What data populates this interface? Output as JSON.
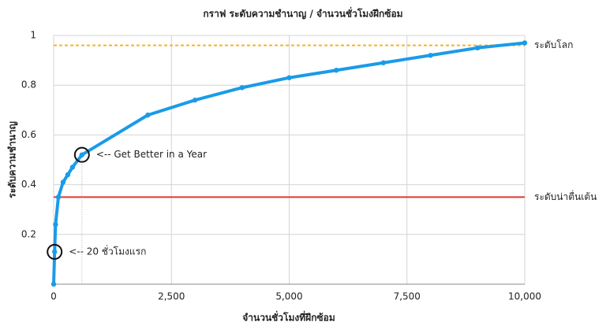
{
  "chart_data": {
    "type": "line",
    "title": "กราฟ ระดับความชำนาญ / จำนวนชั่วโมงฝึกซ้อม",
    "x_label": "จำนวนชั่วโมงที่ฝึกซ้อม",
    "y_label": "ระดับความชำนาญ",
    "xlim": [
      0,
      10000
    ],
    "ylim": [
      0,
      1
    ],
    "xticks": [
      0,
      {
        "value": 2500,
        "label": "2,500"
      },
      {
        "value": 5000,
        "label": "5,000"
      },
      {
        "value": 7500,
        "label": "7,500"
      },
      {
        "value": 10000,
        "label": "10,000"
      }
    ],
    "yticks": [
      0.2,
      0.4,
      0.6,
      0.8,
      1
    ],
    "grid": true,
    "series": [
      {
        "color": "#1a9be8",
        "x": [
          0,
          20,
          40,
          100,
          200,
          300,
          400,
          600,
          2000,
          3000,
          4000,
          5000,
          6000,
          7000,
          8000,
          9000,
          10000
        ],
        "values": [
          0,
          0.13,
          0.24,
          0.35,
          0.41,
          0.44,
          0.47,
          0.52,
          0.68,
          0.74,
          0.79,
          0.83,
          0.86,
          0.89,
          0.92,
          0.95,
          0.97
        ]
      }
    ],
    "reference_lines": [
      {
        "label": "ระดับโลก",
        "value": 0.96,
        "color": "#f5b324",
        "dashed": true
      },
      {
        "label": "ระดับน่าตื่นเต้น",
        "value": 0.35,
        "color": "#e0382d",
        "dashed": false
      }
    ],
    "annotations": [
      {
        "text": "<-- Get Better in a Year",
        "x": 600,
        "y": 0.52,
        "guide_line": true,
        "color": "#1a8ad4"
      },
      {
        "text": "<-- 20 ชั่วโมงแรก",
        "x": 20,
        "y": 0.13,
        "guide_line": false,
        "color": "#1a8ad4"
      }
    ]
  }
}
